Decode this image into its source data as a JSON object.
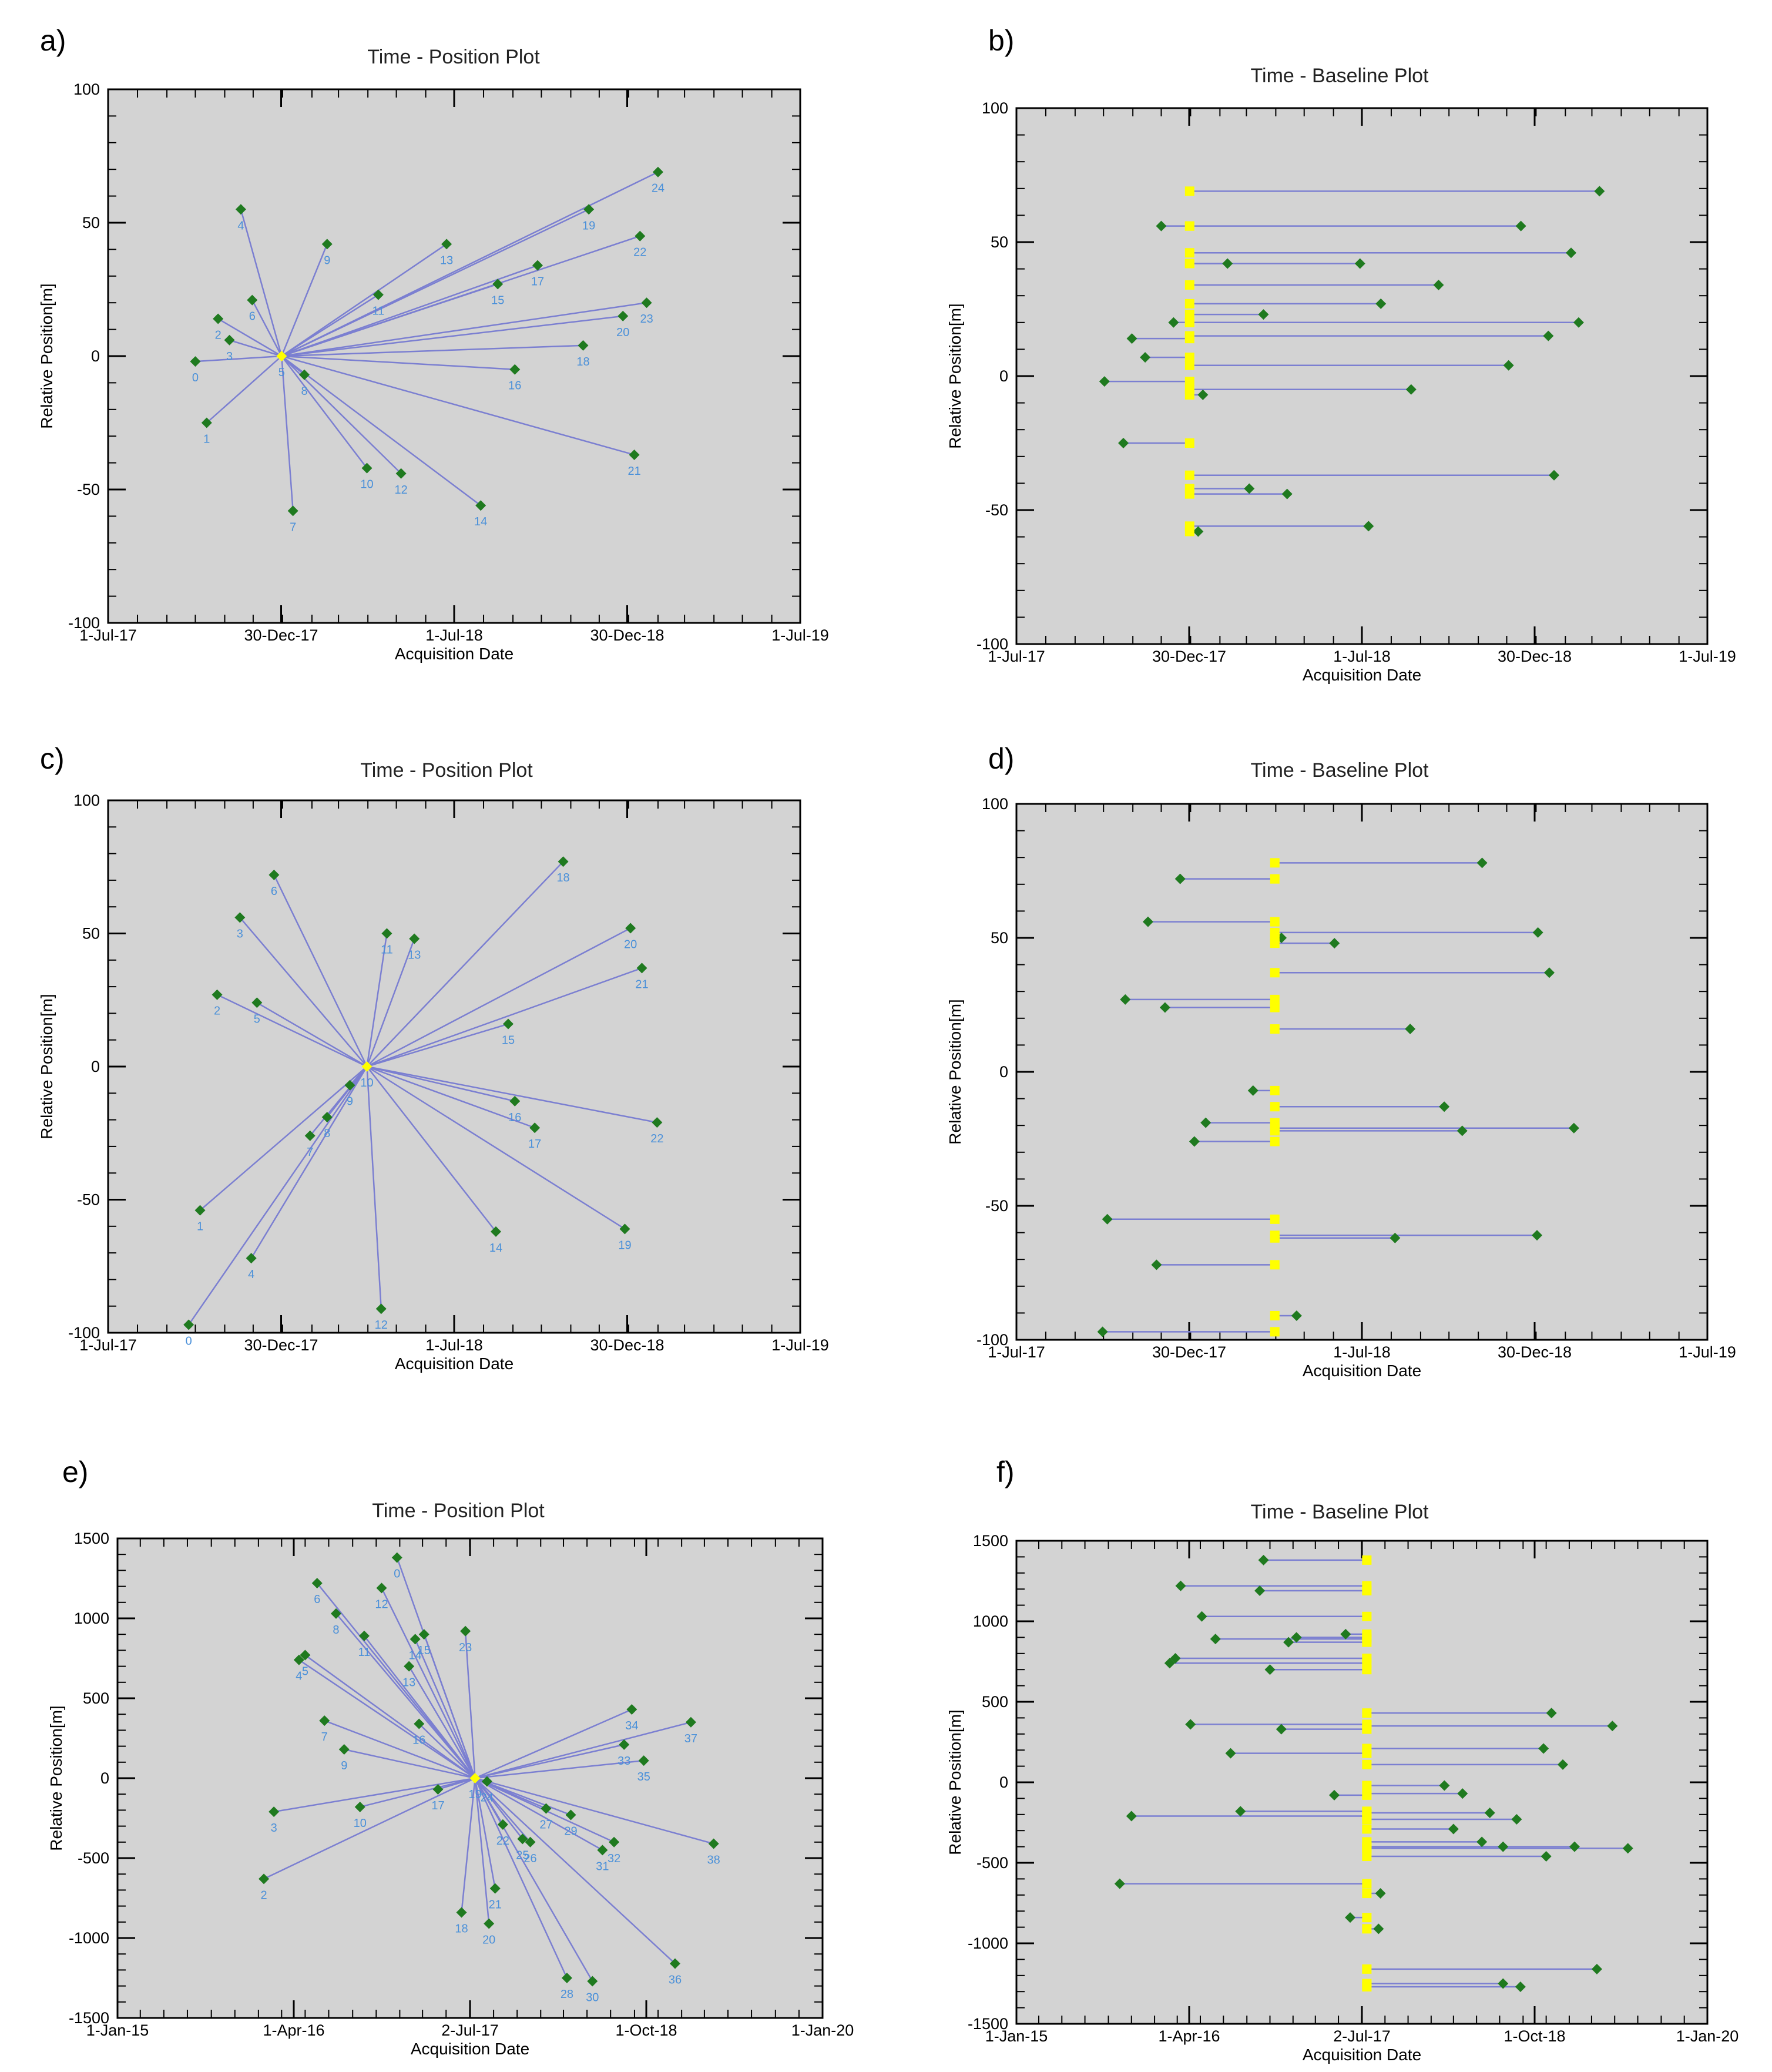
{
  "panels": [
    {
      "letter": "a)",
      "title": "Time - Position Plot"
    },
    {
      "letter": "b)",
      "title": "Time - Baseline Plot"
    },
    {
      "letter": "c)",
      "title": "Time - Position Plot"
    },
    {
      "letter": "d)",
      "title": "Time - Baseline Plot"
    },
    {
      "letter": "e)",
      "title": "Time - Position Plot"
    },
    {
      "letter": "f)",
      "title": "Time - Baseline Plot"
    }
  ],
  "chart_data": [
    {
      "panel": "a",
      "type": "scatter",
      "subtype": "time-position star graph",
      "title": "Time - Position Plot",
      "xlabel": "Acquisition Date",
      "ylabel": "Relative Position[m]",
      "xlim": [
        "2017-07-01",
        "2019-07-01"
      ],
      "ylim": [
        -100,
        100
      ],
      "xticks": [
        "1-Jul-17",
        "30-Dec-17",
        "1-Jul-18",
        "30-Dec-18",
        "1-Jul-19"
      ],
      "yticks": [
        -100,
        -50,
        0,
        50,
        100
      ],
      "grid": false,
      "background": "#d3d3d3",
      "master": {
        "label": "5",
        "date": "2017-12-31",
        "pos": 0
      },
      "points": [
        {
          "label": "0",
          "date": "2017-10-01",
          "pos": -2
        },
        {
          "label": "1",
          "date": "2017-10-13",
          "pos": -25
        },
        {
          "label": "2",
          "date": "2017-10-25",
          "pos": 14
        },
        {
          "label": "3",
          "date": "2017-11-06",
          "pos": 6
        },
        {
          "label": "4",
          "date": "2017-11-18",
          "pos": 55
        },
        {
          "label": "6",
          "date": "2017-11-30",
          "pos": 21
        },
        {
          "label": "7",
          "date": "2018-01-12",
          "pos": -58
        },
        {
          "label": "8",
          "date": "2018-01-24",
          "pos": -7
        },
        {
          "label": "9",
          "date": "2018-02-17",
          "pos": 42
        },
        {
          "label": "10",
          "date": "2018-03-31",
          "pos": -42
        },
        {
          "label": "11",
          "date": "2018-04-12",
          "pos": 23
        },
        {
          "label": "12",
          "date": "2018-05-06",
          "pos": -44
        },
        {
          "label": "13",
          "date": "2018-06-23",
          "pos": 42
        },
        {
          "label": "14",
          "date": "2018-07-29",
          "pos": -56
        },
        {
          "label": "15",
          "date": "2018-08-16",
          "pos": 27
        },
        {
          "label": "16",
          "date": "2018-09-03",
          "pos": -5
        },
        {
          "label": "17",
          "date": "2018-09-27",
          "pos": 34
        },
        {
          "label": "18",
          "date": "2018-11-14",
          "pos": 4
        },
        {
          "label": "19",
          "date": "2018-11-20",
          "pos": 55
        },
        {
          "label": "20",
          "date": "2018-12-26",
          "pos": 15
        },
        {
          "label": "21",
          "date": "2019-01-07",
          "pos": -37
        },
        {
          "label": "22",
          "date": "2019-01-13",
          "pos": 45
        },
        {
          "label": "23",
          "date": "2019-01-20",
          "pos": 20
        },
        {
          "label": "24",
          "date": "2019-02-01",
          "pos": 69
        }
      ]
    },
    {
      "panel": "b",
      "type": "scatter",
      "subtype": "time-baseline plot",
      "title": "Time - Baseline Plot",
      "xlabel": "Acquisition Date",
      "ylabel": "Relative Position[m]",
      "xlim": [
        "2017-07-01",
        "2019-07-01"
      ],
      "ylim": [
        -100,
        100
      ],
      "xticks": [
        "1-Jul-17",
        "30-Dec-17",
        "1-Jul-18",
        "30-Dec-18",
        "1-Jul-19"
      ],
      "yticks": [
        -100,
        -50,
        0,
        50,
        100
      ],
      "grid": false,
      "background": "#d3d3d3",
      "master_date": "2017-12-31",
      "baselines": [
        {
          "date": "2019-03-09",
          "pos": 69
        },
        {
          "date": "2017-12-01",
          "pos": 56
        },
        {
          "date": "2018-12-16",
          "pos": 56
        },
        {
          "date": "2019-02-07",
          "pos": 46
        },
        {
          "date": "2018-02-09",
          "pos": 42
        },
        {
          "date": "2018-06-29",
          "pos": 42
        },
        {
          "date": "2018-09-20",
          "pos": 34
        },
        {
          "date": "2018-07-21",
          "pos": 27
        },
        {
          "date": "2018-03-19",
          "pos": 23
        },
        {
          "date": "2017-12-14",
          "pos": 20
        },
        {
          "date": "2019-02-15",
          "pos": 20
        },
        {
          "date": "2017-10-31",
          "pos": 14
        },
        {
          "date": "2019-01-14",
          "pos": 15
        },
        {
          "date": "2017-11-14",
          "pos": 7
        },
        {
          "date": "2018-12-03",
          "pos": 4
        },
        {
          "date": "2017-10-02",
          "pos": -2
        },
        {
          "date": "2018-01-14",
          "pos": -7
        },
        {
          "date": "2018-08-22",
          "pos": -5
        },
        {
          "date": "2017-10-22",
          "pos": -25
        },
        {
          "date": "2019-01-20",
          "pos": -37
        },
        {
          "date": "2018-03-04",
          "pos": -42
        },
        {
          "date": "2018-04-13",
          "pos": -44
        },
        {
          "date": "2018-07-08",
          "pos": -56
        },
        {
          "date": "2018-01-09",
          "pos": -58
        }
      ]
    },
    {
      "panel": "c",
      "type": "scatter",
      "subtype": "time-position star graph",
      "title": "Time - Position Plot",
      "xlabel": "Acquisition Date",
      "ylabel": "Relative Position[m]",
      "xlim": [
        "2017-07-01",
        "2019-07-01"
      ],
      "ylim": [
        -100,
        100
      ],
      "xticks": [
        "1-Jul-17",
        "30-Dec-17",
        "1-Jul-18",
        "30-Dec-18",
        "1-Jul-19"
      ],
      "yticks": [
        -100,
        -50,
        0,
        50,
        100
      ],
      "grid": false,
      "background": "#d3d3d3",
      "master": {
        "label": "10",
        "date": "2018-03-31",
        "pos": 0
      },
      "points": [
        {
          "label": "0",
          "date": "2017-09-24",
          "pos": -97
        },
        {
          "label": "1",
          "date": "2017-10-06",
          "pos": -54
        },
        {
          "label": "2",
          "date": "2017-10-24",
          "pos": 27
        },
        {
          "label": "3",
          "date": "2017-11-17",
          "pos": 56
        },
        {
          "label": "4",
          "date": "2017-11-29",
          "pos": -72
        },
        {
          "label": "5",
          "date": "2017-12-05",
          "pos": 24
        },
        {
          "label": "6",
          "date": "2017-12-23",
          "pos": 72
        },
        {
          "label": "7",
          "date": "2018-01-30",
          "pos": -26
        },
        {
          "label": "8",
          "date": "2018-02-17",
          "pos": -19
        },
        {
          "label": "9",
          "date": "2018-03-13",
          "pos": -7
        },
        {
          "label": "11",
          "date": "2018-04-21",
          "pos": 50
        },
        {
          "label": "12",
          "date": "2018-04-15",
          "pos": -91
        },
        {
          "label": "13",
          "date": "2018-05-20",
          "pos": 48
        },
        {
          "label": "14",
          "date": "2018-08-14",
          "pos": -62
        },
        {
          "label": "15",
          "date": "2018-08-27",
          "pos": 16
        },
        {
          "label": "16",
          "date": "2018-09-03",
          "pos": -13
        },
        {
          "label": "17",
          "date": "2018-09-24",
          "pos": -23
        },
        {
          "label": "18",
          "date": "2018-10-24",
          "pos": 77
        },
        {
          "label": "19",
          "date": "2018-12-28",
          "pos": -61
        },
        {
          "label": "20",
          "date": "2019-01-03",
          "pos": 52
        },
        {
          "label": "21",
          "date": "2019-01-15",
          "pos": 37
        },
        {
          "label": "22",
          "date": "2019-01-31",
          "pos": -21
        }
      ]
    },
    {
      "panel": "d",
      "type": "scatter",
      "subtype": "time-baseline plot",
      "title": "Time - Baseline Plot",
      "xlabel": "Acquisition Date",
      "ylabel": "Relative Position[m]",
      "xlim": [
        "2017-07-01",
        "2019-07-01"
      ],
      "ylim": [
        -100,
        100
      ],
      "xticks": [
        "1-Jul-17",
        "30-Dec-17",
        "1-Jul-18",
        "30-Dec-18",
        "1-Jul-19"
      ],
      "yticks": [
        -100,
        -50,
        0,
        50,
        100
      ],
      "grid": false,
      "background": "#d3d3d3",
      "master_date": "2018-03-31",
      "baselines": [
        {
          "date": "2018-11-05",
          "pos": 78
        },
        {
          "date": "2017-12-21",
          "pos": 72
        },
        {
          "date": "2017-11-17",
          "pos": 56
        },
        {
          "date": "2018-04-07",
          "pos": 50
        },
        {
          "date": "2018-06-02",
          "pos": 48
        },
        {
          "date": "2019-01-03",
          "pos": 52
        },
        {
          "date": "2019-01-15",
          "pos": 37
        },
        {
          "date": "2017-10-24",
          "pos": 27
        },
        {
          "date": "2017-12-05",
          "pos": 24
        },
        {
          "date": "2018-08-21",
          "pos": 16
        },
        {
          "date": "2018-03-08",
          "pos": -7
        },
        {
          "date": "2018-09-26",
          "pos": -13
        },
        {
          "date": "2018-01-17",
          "pos": -19
        },
        {
          "date": "2018-01-05",
          "pos": -26
        },
        {
          "date": "2018-10-15",
          "pos": -22
        },
        {
          "date": "2019-02-10",
          "pos": -21
        },
        {
          "date": "2017-10-05",
          "pos": -55
        },
        {
          "date": "2018-08-05",
          "pos": -62
        },
        {
          "date": "2019-01-02",
          "pos": -61
        },
        {
          "date": "2017-11-26",
          "pos": -72
        },
        {
          "date": "2018-04-23",
          "pos": -91
        },
        {
          "date": "2017-09-30",
          "pos": -97
        }
      ]
    },
    {
      "panel": "e",
      "type": "scatter",
      "subtype": "time-position star graph",
      "title": "Time - Position Plot",
      "xlabel": "Acquisition Date",
      "ylabel": "Relative Position[m]",
      "xlim": [
        "2015-01-01",
        "2020-01-01"
      ],
      "ylim": [
        -1500,
        1500
      ],
      "xticks": [
        "1-Jan-15",
        "1-Apr-16",
        "2-Jul-17",
        "1-Oct-18",
        "1-Jan-20"
      ],
      "yticks": [
        -1500,
        -1000,
        -500,
        0,
        500,
        1000,
        1500
      ],
      "grid": false,
      "background": "#d3d3d3",
      "master": {
        "label": "19",
        "date": "2017-07-15",
        "pos": 0
      },
      "points": [
        {
          "label": "0",
          "date": "2016-12-25",
          "pos": 1380
        },
        {
          "label": "2",
          "date": "2016-01-15",
          "pos": -630
        },
        {
          "label": "3",
          "date": "2016-02-10",
          "pos": -210
        },
        {
          "label": "4",
          "date": "2016-04-15",
          "pos": 740
        },
        {
          "label": "5",
          "date": "2016-05-01",
          "pos": 770
        },
        {
          "label": "6",
          "date": "2016-06-01",
          "pos": 1220
        },
        {
          "label": "7",
          "date": "2016-06-20",
          "pos": 360
        },
        {
          "label": "8",
          "date": "2016-07-20",
          "pos": 1030
        },
        {
          "label": "9",
          "date": "2016-08-10",
          "pos": 180
        },
        {
          "label": "10",
          "date": "2016-09-20",
          "pos": -180
        },
        {
          "label": "11",
          "date": "2016-10-01",
          "pos": 890
        },
        {
          "label": "12",
          "date": "2016-11-15",
          "pos": 1190
        },
        {
          "label": "13",
          "date": "2017-01-25",
          "pos": 700
        },
        {
          "label": "14",
          "date": "2017-02-10",
          "pos": 870
        },
        {
          "label": "15",
          "date": "2017-03-05",
          "pos": 900
        },
        {
          "label": "16",
          "date": "2017-02-20",
          "pos": 340
        },
        {
          "label": "17",
          "date": "2017-04-10",
          "pos": -70
        },
        {
          "label": "18",
          "date": "2017-06-10",
          "pos": -840
        },
        {
          "label": "20",
          "date": "2017-08-20",
          "pos": -910
        },
        {
          "label": "21",
          "date": "2017-09-05",
          "pos": -690
        },
        {
          "label": "22",
          "date": "2017-09-25",
          "pos": -290
        },
        {
          "label": "23",
          "date": "2017-06-20",
          "pos": 920
        },
        {
          "label": "24",
          "date": "2017-08-15",
          "pos": -20
        },
        {
          "label": "25",
          "date": "2017-11-15",
          "pos": -380
        },
        {
          "label": "26",
          "date": "2017-12-05",
          "pos": -400
        },
        {
          "label": "27",
          "date": "2018-01-15",
          "pos": -190
        },
        {
          "label": "28",
          "date": "2018-03-10",
          "pos": -1250
        },
        {
          "label": "29",
          "date": "2018-03-20",
          "pos": -230
        },
        {
          "label": "30",
          "date": "2018-05-15",
          "pos": -1270
        },
        {
          "label": "31",
          "date": "2018-06-10",
          "pos": -450
        },
        {
          "label": "32",
          "date": "2018-07-10",
          "pos": -400
        },
        {
          "label": "33",
          "date": "2018-08-05",
          "pos": 210
        },
        {
          "label": "34",
          "date": "2018-08-25",
          "pos": 430
        },
        {
          "label": "35",
          "date": "2018-09-25",
          "pos": 110
        },
        {
          "label": "36",
          "date": "2018-12-15",
          "pos": -1160
        },
        {
          "label": "37",
          "date": "2019-01-25",
          "pos": 350
        },
        {
          "label": "38",
          "date": "2019-03-25",
          "pos": -410
        }
      ]
    },
    {
      "panel": "f",
      "type": "scatter",
      "subtype": "time-baseline plot",
      "title": "Time - Baseline Plot",
      "xlabel": "Acquisition Date",
      "ylabel": "Relative Position[m]",
      "xlim": [
        "2015-01-01",
        "2020-01-01"
      ],
      "ylim": [
        -1500,
        1500
      ],
      "xticks": [
        "1-Jan-15",
        "1-Apr-16",
        "2-Jul-17",
        "1-Oct-18",
        "1-Jan-20"
      ],
      "yticks": [
        -1500,
        -1000,
        -500,
        0,
        500,
        1000,
        1500
      ],
      "grid": false,
      "background": "#d3d3d3",
      "master_date": "2017-07-15",
      "baselines": [
        {
          "date": "2016-10-15",
          "pos": 1380
        },
        {
          "date": "2016-03-10",
          "pos": 1220
        },
        {
          "date": "2016-10-05",
          "pos": 1190
        },
        {
          "date": "2016-05-05",
          "pos": 1030
        },
        {
          "date": "2016-06-10",
          "pos": 890
        },
        {
          "date": "2016-12-20",
          "pos": 870
        },
        {
          "date": "2017-01-10",
          "pos": 900
        },
        {
          "date": "2017-05-20",
          "pos": 920
        },
        {
          "date": "2016-02-10",
          "pos": 740
        },
        {
          "date": "2016-02-25",
          "pos": 770
        },
        {
          "date": "2016-11-01",
          "pos": 700
        },
        {
          "date": "2016-04-05",
          "pos": 360
        },
        {
          "date": "2016-12-01",
          "pos": 330
        },
        {
          "date": "2018-11-15",
          "pos": 430
        },
        {
          "date": "2019-04-25",
          "pos": 350
        },
        {
          "date": "2016-07-20",
          "pos": 180
        },
        {
          "date": "2018-10-25",
          "pos": 210
        },
        {
          "date": "2018-12-15",
          "pos": 110
        },
        {
          "date": "2018-02-05",
          "pos": -20
        },
        {
          "date": "2017-04-20",
          "pos": -80
        },
        {
          "date": "2018-03-25",
          "pos": -70
        },
        {
          "date": "2015-11-01",
          "pos": -210
        },
        {
          "date": "2016-08-15",
          "pos": -180
        },
        {
          "date": "2018-06-05",
          "pos": -190
        },
        {
          "date": "2018-08-15",
          "pos": -230
        },
        {
          "date": "2018-03-01",
          "pos": -290
        },
        {
          "date": "2018-05-15",
          "pos": -370
        },
        {
          "date": "2018-07-10",
          "pos": -400
        },
        {
          "date": "2019-01-15",
          "pos": -400
        },
        {
          "date": "2019-06-05",
          "pos": -410
        },
        {
          "date": "2018-11-01",
          "pos": -460
        },
        {
          "date": "2015-10-01",
          "pos": -630
        },
        {
          "date": "2017-08-20",
          "pos": -690
        },
        {
          "date": "2017-06-01",
          "pos": -840
        },
        {
          "date": "2017-08-15",
          "pos": -910
        },
        {
          "date": "2019-03-15",
          "pos": -1160
        },
        {
          "date": "2018-07-10",
          "pos": -1250
        },
        {
          "date": "2018-08-25",
          "pos": -1270
        }
      ]
    }
  ]
}
